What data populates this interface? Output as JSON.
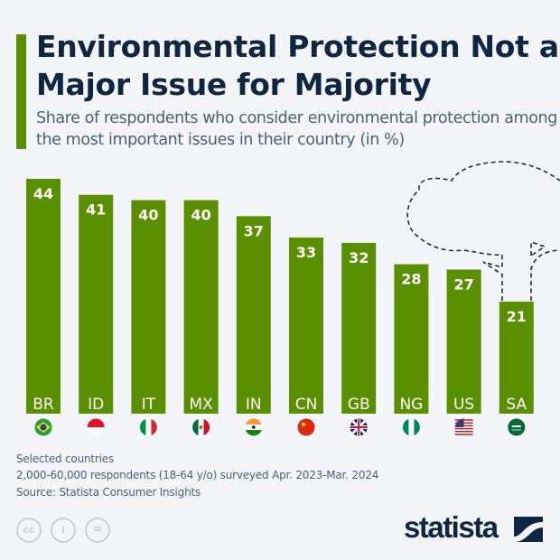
{
  "title": "Environmental Protection Not a Major Issue for Majority",
  "subtitle": "Share of respondents who consider environmental protection among the most important issues in their country (in %)",
  "chart_data": {
    "type": "bar",
    "title": "Environmental Protection Not a Major Issue for Majority",
    "subtitle": "Share of respondents who consider environmental protection among the most important issues in their country (in %)",
    "categories": [
      "BR",
      "ID",
      "IT",
      "MX",
      "IN",
      "CN",
      "GB",
      "NG",
      "US",
      "SA"
    ],
    "values": [
      44,
      41,
      40,
      40,
      37,
      33,
      32,
      28,
      27,
      21
    ],
    "ylim": [
      0,
      44
    ],
    "grid": false,
    "bar_color": "#5a8f00",
    "flag_icons": [
      "brazil-flag",
      "indonesia-flag",
      "italy-flag",
      "mexico-flag",
      "india-flag",
      "china-flag",
      "uk-flag",
      "nigeria-flag",
      "usa-flag",
      "saudi-arabia-flag"
    ]
  },
  "notes": {
    "line1": "Selected countries",
    "line2": "2,000-60,000 respondents (18-64 y/o) surveyed Apr. 2023-Mar. 2024",
    "source": "Source: Statista Consumer Insights"
  },
  "license_icons": {
    "cc": "cc",
    "by": "i",
    "nd": "="
  },
  "brand": "statista",
  "colors": {
    "accent": "#5a8f00",
    "title": "#0f2642",
    "background": "#f3f5f8"
  }
}
